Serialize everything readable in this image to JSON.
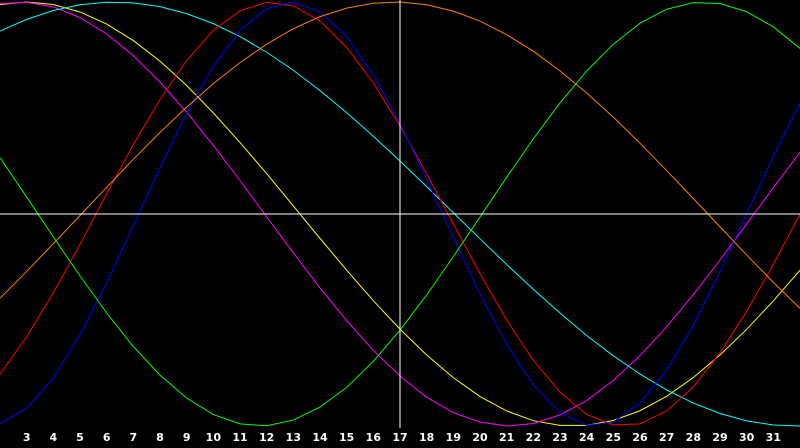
{
  "chart_data": {
    "type": "line",
    "x": [
      2,
      3,
      4,
      5,
      6,
      7,
      8,
      9,
      10,
      11,
      12,
      13,
      14,
      15,
      16,
      17,
      18,
      19,
      20,
      21,
      22,
      23,
      24,
      25,
      26,
      27,
      28,
      29,
      30,
      31,
      32
    ],
    "xlim": [
      2,
      32
    ],
    "xticks": [
      3,
      4,
      5,
      6,
      7,
      8,
      9,
      10,
      11,
      12,
      13,
      14,
      15,
      16,
      17,
      18,
      19,
      20,
      21,
      22,
      23,
      24,
      25,
      26,
      27,
      28,
      29,
      30,
      31
    ],
    "ylim": [
      -1,
      1
    ],
    "series": [
      {
        "color": "#ffff00",
        "values": [
          0.988,
          1.0,
          0.988,
          0.953,
          0.896,
          0.818,
          0.721,
          0.606,
          0.477,
          0.337,
          0.191,
          0.038,
          -0.115,
          -0.265,
          -0.409,
          -0.543,
          -0.665,
          -0.772,
          -0.861,
          -0.929,
          -0.975,
          -0.997,
          -0.997,
          -0.974,
          -0.928,
          -0.86,
          -0.771,
          -0.665,
          -0.544,
          -0.41,
          -0.265
        ]
      },
      {
        "color": "#ff00ff",
        "values": [
          0.992,
          0.999,
          0.977,
          0.927,
          0.849,
          0.747,
          0.622,
          0.48,
          0.324,
          0.158,
          -0.013,
          -0.183,
          -0.348,
          -0.503,
          -0.643,
          -0.764,
          -0.864,
          -0.937,
          -0.982,
          -1.0,
          -0.988,
          -0.948,
          -0.88,
          -0.785,
          -0.668,
          -0.532,
          -0.38,
          -0.217,
          -0.047,
          0.124,
          0.291
        ]
      },
      {
        "color": "#00ffff",
        "values": [
          0.863,
          0.918,
          0.96,
          0.987,
          0.999,
          0.996,
          0.978,
          0.945,
          0.898,
          0.837,
          0.763,
          0.678,
          0.582,
          0.478,
          0.367,
          0.25,
          0.129,
          0.006,
          -0.117,
          -0.238,
          -0.355,
          -0.467,
          -0.573,
          -0.669,
          -0.755,
          -0.83,
          -0.892,
          -0.941,
          -0.976,
          -0.995,
          -1.0
        ]
      },
      {
        "color": "#ff0000",
        "values": [
          -0.756,
          -0.579,
          -0.372,
          -0.143,
          0.095,
          0.327,
          0.54,
          0.724,
          0.866,
          0.959,
          0.999,
          0.982,
          0.91,
          0.786,
          0.618,
          0.416,
          0.19,
          -0.047,
          -0.282,
          -0.5,
          -0.69,
          -0.841,
          -0.945,
          -0.995,
          -0.99,
          -0.929,
          -0.816,
          -0.655,
          -0.459,
          -0.237,
          0.0
        ]
      },
      {
        "color": "#0000ff",
        "values": [
          -0.99,
          -0.916,
          -0.773,
          -0.57,
          -0.325,
          -0.055,
          0.219,
          0.476,
          0.697,
          0.866,
          0.969,
          1.0,
          0.954,
          0.837,
          0.657,
          0.427,
          0.164,
          -0.11,
          -0.377,
          -0.614,
          -0.806,
          -0.937,
          -0.997,
          -0.982,
          -0.891,
          -0.736,
          -0.524,
          -0.272,
          0.001,
          0.272,
          0.524
        ]
      },
      {
        "color": "#ff8000",
        "values": [
          -0.397,
          -0.271,
          -0.14,
          -0.007,
          0.126,
          0.258,
          0.385,
          0.504,
          0.615,
          0.714,
          0.801,
          0.874,
          0.931,
          0.971,
          0.994,
          1.0,
          0.987,
          0.957,
          0.91,
          0.846,
          0.768,
          0.675,
          0.571,
          0.457,
          0.334,
          0.205,
          0.073,
          -0.06,
          -0.193,
          -0.322,
          -0.445
        ]
      },
      {
        "color": "#00ff00",
        "values": [
          0.266,
          0.08,
          -0.108,
          -0.292,
          -0.467,
          -0.625,
          -0.76,
          -0.868,
          -0.946,
          -0.99,
          -0.999,
          -0.972,
          -0.911,
          -0.818,
          -0.695,
          -0.548,
          -0.382,
          -0.201,
          -0.014,
          0.173,
          0.355,
          0.524,
          0.674,
          0.801,
          0.9,
          0.966,
          0.997,
          0.993,
          0.954,
          0.883,
          0.781
        ]
      }
    ]
  }
}
